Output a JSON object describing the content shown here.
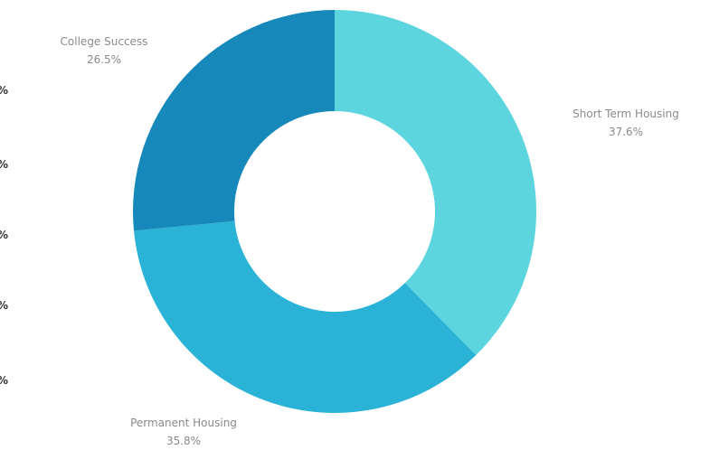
{
  "chart_data": {
    "type": "pie",
    "donut": true,
    "title": "",
    "categories": [
      "Short  Term Housing",
      "Permanent Housing",
      "College Success"
    ],
    "values": [
      37.6,
      35.8,
      26.5
    ],
    "value_labels": [
      "37.6%",
      "35.8%",
      "26.5%"
    ],
    "colors": [
      "#5cd5df",
      "#2bb3d7",
      "#1688ba"
    ],
    "legend": "none",
    "edge_marks": [
      "%",
      "%",
      "%",
      "%",
      "%"
    ]
  }
}
